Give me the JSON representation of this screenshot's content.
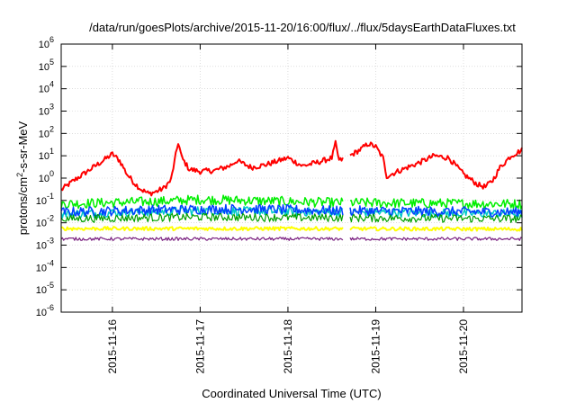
{
  "chart_data": {
    "type": "line",
    "title": "/data/run/goesPlots/archive/2015-11-20/16:00/flux/../flux/5daysEarthDataFluxes.txt",
    "xlabel": "Coordinated Universal Time (UTC)",
    "ylabel_parts": {
      "base": "protons/cm",
      "exp": "2",
      "rest": "-s-sr-MeV"
    },
    "x_range_days": [
      "2015-11-15 10:00",
      "2015-11-20 16:00"
    ],
    "x_ticks": [
      {
        "value": "2015-11-16 00:00",
        "label": "2015-11-16"
      },
      {
        "value": "2015-11-17 00:00",
        "label": "2015-11-17"
      },
      {
        "value": "2015-11-18 00:00",
        "label": "2015-11-18"
      },
      {
        "value": "2015-11-19 00:00",
        "label": "2015-11-19"
      },
      {
        "value": "2015-11-20 00:00",
        "label": "2015-11-20"
      }
    ],
    "y_scale": "log",
    "y_ticks": [
      {
        "base": "10",
        "exp": "-6",
        "value": 1e-06
      },
      {
        "base": "10",
        "exp": "-5",
        "value": 1e-05
      },
      {
        "base": "10",
        "exp": "-4",
        "value": 0.0001
      },
      {
        "base": "10",
        "exp": "-3",
        "value": 0.001
      },
      {
        "base": "10",
        "exp": "-2",
        "value": 0.01
      },
      {
        "base": "10",
        "exp": "-1",
        "value": 0.1
      },
      {
        "base": "10",
        "exp": "0",
        "value": 1
      },
      {
        "base": "10",
        "exp": "1",
        "value": 10
      },
      {
        "base": "10",
        "exp": "2",
        "value": 100
      },
      {
        "base": "10",
        "exp": "3",
        "value": 1000
      },
      {
        "base": "10",
        "exp": "4",
        "value": 10000
      },
      {
        "base": "10",
        "exp": "5",
        "value": 100000
      },
      {
        "base": "10",
        "exp": "6",
        "value": 1000000
      }
    ],
    "ylim": [
      1e-06,
      1000000.0
    ],
    "grid": true,
    "data_gap": [
      "2015-11-18 15:00",
      "2015-11-18 17:00"
    ],
    "series": [
      {
        "color": "#ff0000",
        "width": 2,
        "noise": 0.12,
        "points": [
          [
            "2015-11-15 10:00",
            0.3
          ],
          [
            "2015-11-15 14:00",
            0.9
          ],
          [
            "2015-11-15 18:00",
            2.5
          ],
          [
            "2015-11-15 22:00",
            7
          ],
          [
            "2015-11-16 00:00",
            12
          ],
          [
            "2015-11-16 02:00",
            6
          ],
          [
            "2015-11-16 04:00",
            1.5
          ],
          [
            "2015-11-16 06:00",
            0.6
          ],
          [
            "2015-11-16 08:00",
            0.3
          ],
          [
            "2015-11-16 10:00",
            0.2
          ],
          [
            "2015-11-16 12:00",
            0.25
          ],
          [
            "2015-11-16 14:00",
            0.35
          ],
          [
            "2015-11-16 16:00",
            0.8
          ],
          [
            "2015-11-16 18:00",
            40
          ],
          [
            "2015-11-16 19:00",
            8
          ],
          [
            "2015-11-16 21:00",
            2.5
          ],
          [
            "2015-11-17 00:00",
            2
          ],
          [
            "2015-11-17 04:00",
            2.2
          ],
          [
            "2015-11-17 08:00",
            3.5
          ],
          [
            "2015-11-17 10:00",
            6
          ],
          [
            "2015-11-17 14:00",
            3
          ],
          [
            "2015-11-17 18:00",
            4
          ],
          [
            "2015-11-18 00:00",
            8
          ],
          [
            "2015-11-18 04:00",
            3.5
          ],
          [
            "2015-11-18 08:00",
            5
          ],
          [
            "2015-11-18 12:00",
            8
          ],
          [
            "2015-11-18 13:00",
            35
          ],
          [
            "2015-11-18 14:00",
            6
          ],
          [
            "2015-11-18 17:00",
            10
          ],
          [
            "2015-11-18 20:00",
            20
          ],
          [
            "2015-11-18 22:00",
            35
          ],
          [
            "2015-11-19 00:00",
            25
          ],
          [
            "2015-11-19 02:00",
            8
          ],
          [
            "2015-11-19 03:00",
            1.2
          ],
          [
            "2015-11-19 06:00",
            2
          ],
          [
            "2015-11-19 12:00",
            5
          ],
          [
            "2015-11-19 16:00",
            10
          ],
          [
            "2015-11-19 20:00",
            8
          ],
          [
            "2015-11-20 00:00",
            1.5
          ],
          [
            "2015-11-20 04:00",
            0.5
          ],
          [
            "2015-11-20 06:00",
            0.4
          ],
          [
            "2015-11-20 08:00",
            0.8
          ],
          [
            "2015-11-20 10:00",
            3
          ],
          [
            "2015-11-20 13:00",
            10
          ],
          [
            "2015-11-20 16:00",
            18
          ]
        ]
      },
      {
        "color": "#00ee00",
        "width": 1.5,
        "noise": 0.22,
        "points": [
          [
            "2015-11-15 10:00",
            0.07
          ],
          [
            "2015-11-16 12:00",
            0.09
          ],
          [
            "2015-11-17 00:00",
            0.11
          ],
          [
            "2015-11-17 12:00",
            0.1
          ],
          [
            "2015-11-18 12:00",
            0.08
          ],
          [
            "2015-11-19 12:00",
            0.075
          ],
          [
            "2015-11-20 16:00",
            0.07
          ]
        ]
      },
      {
        "color": "#00c8c8",
        "width": 1.5,
        "noise": 0.2,
        "points": [
          [
            "2015-11-15 10:00",
            0.025
          ],
          [
            "2015-11-17 00:00",
            0.035
          ],
          [
            "2015-11-18 12:00",
            0.03
          ],
          [
            "2015-11-20 16:00",
            0.025
          ]
        ]
      },
      {
        "color": "#0040ff",
        "width": 1.5,
        "noise": 0.22,
        "points": [
          [
            "2015-11-15 10:00",
            0.03
          ],
          [
            "2015-11-16 12:00",
            0.038
          ],
          [
            "2015-11-17 12:00",
            0.042
          ],
          [
            "2015-11-18 12:00",
            0.035
          ],
          [
            "2015-11-20 16:00",
            0.03
          ]
        ]
      },
      {
        "color": "#009f00",
        "width": 1.2,
        "noise": 0.18,
        "points": [
          [
            "2015-11-15 10:00",
            0.015
          ],
          [
            "2015-11-17 00:00",
            0.018
          ],
          [
            "2015-11-20 16:00",
            0.015
          ]
        ]
      },
      {
        "color": "#ffff00",
        "width": 2,
        "noise": 0.08,
        "points": [
          [
            "2015-11-15 10:00",
            0.0055
          ],
          [
            "2015-11-18 00:00",
            0.0055
          ],
          [
            "2015-11-20 16:00",
            0.0052
          ]
        ]
      },
      {
        "color": "#7a2080",
        "width": 1.2,
        "noise": 0.07,
        "points": [
          [
            "2015-11-15 10:00",
            0.0019
          ],
          [
            "2015-11-18 00:00",
            0.0019
          ],
          [
            "2015-11-20 16:00",
            0.0019
          ]
        ]
      }
    ]
  }
}
